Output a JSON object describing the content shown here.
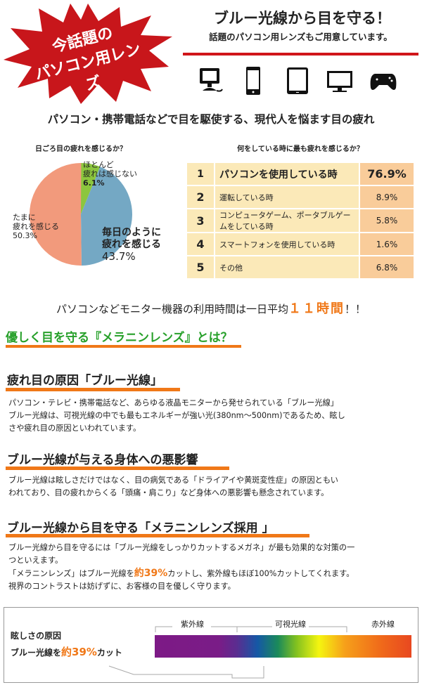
{
  "header": {
    "badge_line1": "今話題の",
    "badge_line2": "パソコン用レンズ",
    "title": "ブルー光線から目を守る！",
    "subtitle": "話題のパソコン用レンズもご用意しています。",
    "device_icons": [
      "desktop-pc-icon",
      "smartphone-icon",
      "tablet-icon",
      "monitor-icon",
      "gamepad-icon"
    ]
  },
  "lead": "パソコン・携帯電話などで目を駆使する、現代人を悩ます目の疲れ",
  "chart_data": [
    {
      "type": "pie",
      "title": "日ごろ目の疲れを感じるか？",
      "slices": [
        {
          "label_line1": "ほとんど",
          "label_line2": "疲れは感じない",
          "value": 6.1,
          "value_label": "6.1%",
          "color": "#8cc63e"
        },
        {
          "label_line1": "毎日のように",
          "label_line2": "疲れを感じる",
          "value": 43.7,
          "value_label": "43.7%",
          "color": "#74a8c4"
        },
        {
          "label_line1": "たまに",
          "label_line2": "疲れを感じる",
          "value": 50.3,
          "value_label": "50.3%",
          "color": "#f29a7c"
        }
      ]
    },
    {
      "type": "table",
      "title": "何をしている時に最も疲れを感じるか？",
      "rows": [
        {
          "rank": "1",
          "label": "パソコンを使用している時",
          "value": "76.9%"
        },
        {
          "rank": "2",
          "label": "運転している時",
          "value": "8.9%"
        },
        {
          "rank": "3",
          "label": "コンピュータゲーム、ポータブルゲームをしている時",
          "value": "5.8%"
        },
        {
          "rank": "4",
          "label": "スマートフォンを使用している時",
          "value": "1.6%"
        },
        {
          "rank": "5",
          "label": "その他",
          "value": "6.8%"
        }
      ]
    }
  ],
  "usage": {
    "prefix": "パソコンなどモニター機器の利用時間は一日平均",
    "highlight": "１１時間",
    "suffix": "！！"
  },
  "main_heading": "優しく目を守る『メラニンレンズ』とは？",
  "sections": [
    {
      "title": "疲れ目の原因「ブルー光線」",
      "lines": [
        "パソコン・テレビ・携帯電話など、あらゆる液晶モニターから発せられている「ブルー光線」",
        "ブルー光線は、可視光線の中でも最もエネルギーが強い光(380nm〜500nm)であるため、眩し",
        "さや疲れ目の原因といわれています。"
      ]
    },
    {
      "title": "ブルー光線が与える身体への悪影響",
      "lines": [
        "ブルー光線は眩しさだけではなく、目の病気である「ドライアイや黄斑変性症」の原因ともい",
        "われており、目の疲れからくる「頭痛・肩こり」など身体への悪影響も懸念されています。"
      ]
    },
    {
      "title": "ブルー光線から目を守る「メラニンレンズ採用 」",
      "lines": [
        "ブルー光線から目を守るには「ブルー光線をしっかりカットするメガネ」が最も効果的な対策の一",
        "つといえます。"
      ],
      "line3_prefix": "「メラニンレンズ」はブルー光線を",
      "line3_highlight": "約39%",
      "line3_suffix": "カットし、紫外線もほぼ100%カットしてくれます。",
      "line4": "視界のコントラストは妨げずに、お客様の目を優しく守ります。"
    }
  ],
  "spectrum": {
    "caption1": "眩しさの原因",
    "caption2_prefix": "ブルー光線を",
    "caption2_highlight": "約39%",
    "caption2_suffix": "カット",
    "uv": "紫外線",
    "visible": "可視光線",
    "ir": "赤外線"
  }
}
